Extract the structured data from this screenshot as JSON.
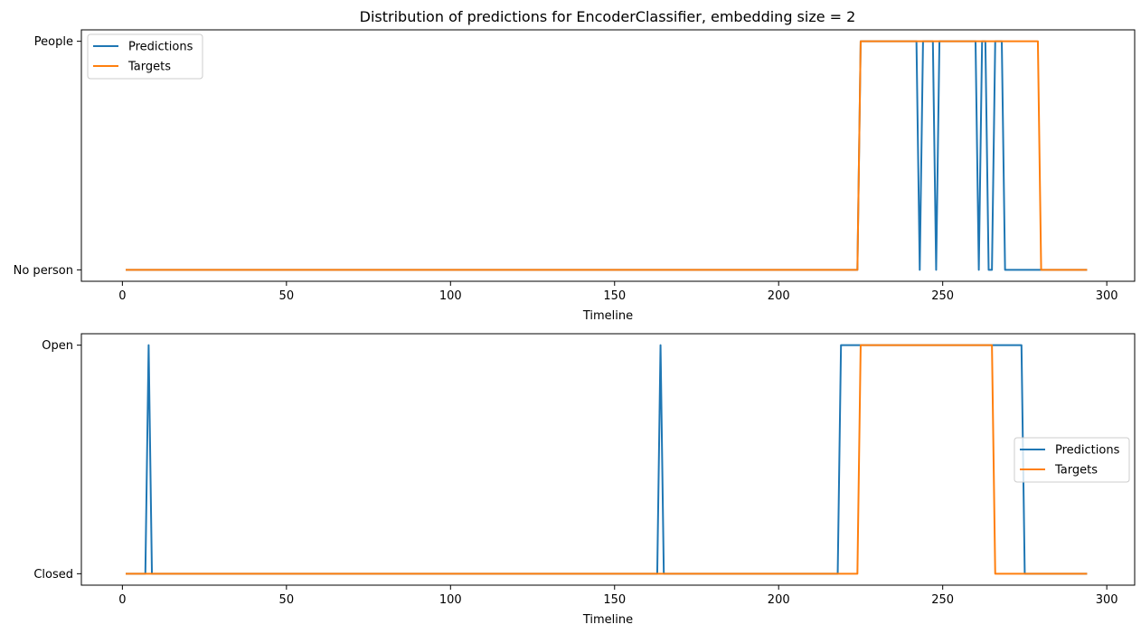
{
  "figure": {
    "title": "Distribution of predictions for EncoderClassifier, embedding size = 2"
  },
  "colors": {
    "predictions": "#1f77b4",
    "targets": "#ff7f0e"
  },
  "chart_data": [
    {
      "type": "line",
      "title": "Distribution of predictions for EncoderClassifier, embedding size = 2",
      "xlabel": "Timeline",
      "ylabel": "",
      "xlim": [
        -12.5,
        308.5
      ],
      "ylim": [
        -0.05,
        1.05
      ],
      "xticks": [
        0,
        50,
        100,
        150,
        200,
        250,
        300
      ],
      "yticks": [
        {
          "value": 0,
          "label": "No person"
        },
        {
          "value": 1,
          "label": "People"
        }
      ],
      "grid": false,
      "legend_position": "upper-left",
      "series": [
        {
          "name": "Predictions",
          "color": "#1f77b4",
          "points": [
            [
              1,
              0
            ],
            [
              224,
              0
            ],
            [
              225,
              1
            ],
            [
              242,
              1
            ],
            [
              243,
              0
            ],
            [
              244,
              1
            ],
            [
              247,
              1
            ],
            [
              248,
              0
            ],
            [
              249,
              1
            ],
            [
              260,
              1
            ],
            [
              261,
              0
            ],
            [
              262,
              1
            ],
            [
              263,
              1
            ],
            [
              264,
              0
            ],
            [
              265,
              0
            ],
            [
              266,
              1
            ],
            [
              267,
              1
            ],
            [
              268,
              1
            ],
            [
              269,
              0
            ],
            [
              280,
              0
            ],
            [
              294,
              0
            ]
          ]
        },
        {
          "name": "Targets",
          "color": "#ff7f0e",
          "points": [
            [
              1,
              0
            ],
            [
              224,
              0
            ],
            [
              225,
              1
            ],
            [
              279,
              1
            ],
            [
              280,
              0
            ],
            [
              294,
              0
            ]
          ]
        }
      ]
    },
    {
      "type": "line",
      "title": "",
      "xlabel": "Timeline",
      "ylabel": "",
      "xlim": [
        -12.5,
        308.5
      ],
      "ylim": [
        -0.05,
        1.05
      ],
      "xticks": [
        0,
        50,
        100,
        150,
        200,
        250,
        300
      ],
      "yticks": [
        {
          "value": 0,
          "label": "Closed"
        },
        {
          "value": 1,
          "label": "Open"
        }
      ],
      "grid": false,
      "legend_position": "center-right",
      "series": [
        {
          "name": "Predictions",
          "color": "#1f77b4",
          "points": [
            [
              1,
              0
            ],
            [
              7,
              0
            ],
            [
              8,
              1
            ],
            [
              9,
              0
            ],
            [
              163,
              0
            ],
            [
              164,
              1
            ],
            [
              165,
              0
            ],
            [
              218,
              0
            ],
            [
              219,
              1
            ],
            [
              274,
              1
            ],
            [
              275,
              0
            ],
            [
              294,
              0
            ]
          ]
        },
        {
          "name": "Targets",
          "color": "#ff7f0e",
          "points": [
            [
              1,
              0
            ],
            [
              224,
              0
            ],
            [
              225,
              1
            ],
            [
              265,
              1
            ],
            [
              266,
              0
            ],
            [
              294,
              0
            ]
          ]
        }
      ]
    }
  ]
}
